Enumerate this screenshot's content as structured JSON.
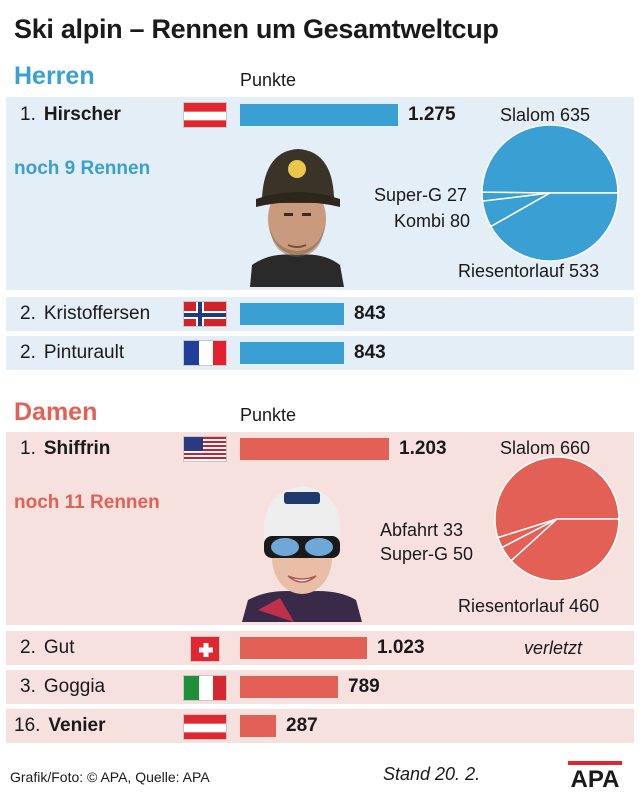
{
  "title": "Ski alpin – Rennen um Gesamtweltcup",
  "credit": "Grafik/Foto: © APA, Quelle: APA",
  "stand": "Stand 20. 2.",
  "logo_text": "APA",
  "colors": {
    "herren": "#3a9fd3",
    "damen": "#e26055",
    "herren_bg": "#e4eef6",
    "damen_bg": "#f6e1df"
  },
  "chart_data": [
    {
      "type": "bar",
      "group": "Herren",
      "value_label": "Punkte",
      "remaining_races": "noch 9 Rennen",
      "rows": [
        {
          "rank": "1.",
          "name": "Hirscher",
          "flag": "austria-flag",
          "value": 1275,
          "value_label": "1.275",
          "bold_name": true
        },
        {
          "rank": "2.",
          "name": "Kristoffersen",
          "flag": "norway-flag",
          "value": 843,
          "value_label": "843",
          "bold_name": false
        },
        {
          "rank": "2.",
          "name": "Pinturault",
          "flag": "france-flag",
          "value": 843,
          "value_label": "843",
          "bold_name": false
        }
      ]
    },
    {
      "type": "pie",
      "group": "Herren",
      "leader": "Hirscher",
      "slices": [
        {
          "label": "Slalom",
          "value": 635
        },
        {
          "label": "Super-G",
          "value": 27
        },
        {
          "label": "Kombi",
          "value": 80
        },
        {
          "label": "Riesentorlauf",
          "value": 533
        }
      ]
    },
    {
      "type": "bar",
      "group": "Damen",
      "value_label": "Punkte",
      "remaining_races": "noch 11 Rennen",
      "rows": [
        {
          "rank": "1.",
          "name": "Shiffrin",
          "flag": "usa-flag",
          "value": 1203,
          "value_label": "1.203",
          "bold_name": true,
          "note": ""
        },
        {
          "rank": "2.",
          "name": "Gut",
          "flag": "switzerland-flag",
          "value": 1023,
          "value_label": "1.023",
          "bold_name": false,
          "note": "verletzt"
        },
        {
          "rank": "3.",
          "name": "Goggia",
          "flag": "italy-flag",
          "value": 789,
          "value_label": "789",
          "bold_name": false,
          "note": ""
        },
        {
          "rank": "16.",
          "name": "Venier",
          "flag": "austria-flag",
          "value": 287,
          "value_label": "287",
          "bold_name": true,
          "note": ""
        }
      ]
    },
    {
      "type": "pie",
      "group": "Damen",
      "leader": "Shiffrin",
      "slices": [
        {
          "label": "Slalom",
          "value": 660
        },
        {
          "label": "Abfahrt",
          "value": 33
        },
        {
          "label": "Super-G",
          "value": 50
        },
        {
          "label": "Riesentorlauf",
          "value": 460
        }
      ]
    }
  ],
  "labels": {
    "herren": "Herren",
    "damen": "Damen",
    "punkte": "Punkte",
    "h_slalom": "Slalom 635",
    "h_superg": "Super-G 27",
    "h_kombi": "Kombi 80",
    "h_riesen": "Riesentorlauf 533",
    "d_slalom": "Slalom 660",
    "d_abfahrt": "Abfahrt 33",
    "d_superg": "Super-G 50",
    "d_riesen": "Riesentorlauf 460"
  }
}
